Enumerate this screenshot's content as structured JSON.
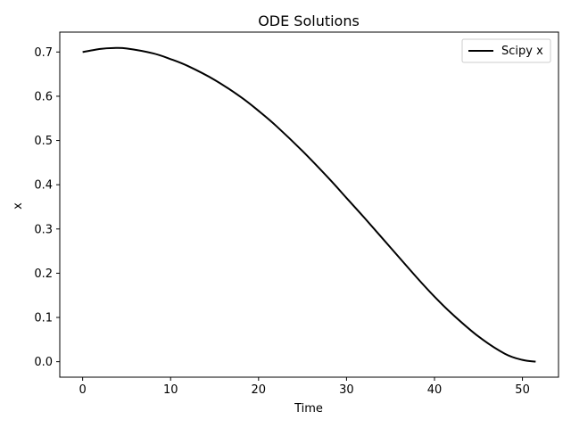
{
  "chart_data": {
    "type": "line",
    "title": "ODE Solutions",
    "xlabel": "Time",
    "ylabel": "x",
    "xlim": [
      -2.6,
      54.1
    ],
    "ylim": [
      -0.035,
      0.745
    ],
    "xticks": [
      0,
      10,
      20,
      30,
      40,
      50
    ],
    "xtick_labels": [
      "0",
      "10",
      "20",
      "30",
      "40",
      "50"
    ],
    "yticks": [
      0.0,
      0.1,
      0.2,
      0.3,
      0.4,
      0.5,
      0.6,
      0.7
    ],
    "ytick_labels": [
      "0.0",
      "0.1",
      "0.2",
      "0.3",
      "0.4",
      "0.5",
      "0.6",
      "0.7"
    ],
    "grid": false,
    "legend_position": "upper right",
    "series": [
      {
        "name": "Scipy x",
        "color": "#000000",
        "x": [
          0,
          2,
          3.5,
          5,
          8,
          10,
          12,
          15,
          18,
          20,
          22,
          25,
          28,
          30,
          32,
          35,
          38,
          40,
          42,
          45,
          48,
          50,
          51.5
        ],
        "y": [
          0.7,
          0.707,
          0.709,
          0.708,
          0.697,
          0.684,
          0.668,
          0.637,
          0.598,
          0.567,
          0.533,
          0.476,
          0.414,
          0.37,
          0.326,
          0.258,
          0.19,
          0.147,
          0.108,
          0.057,
          0.018,
          0.004,
          0.0
        ]
      }
    ]
  }
}
